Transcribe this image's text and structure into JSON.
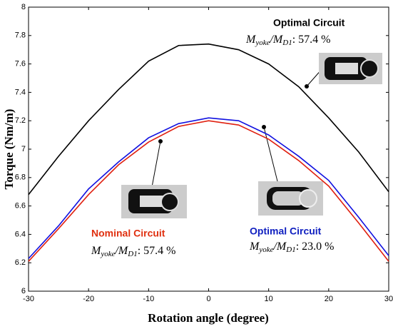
{
  "chart_data": {
    "type": "line",
    "x_label": "Rotation angle (degree)",
    "y_label": "Torque (Nm/m)",
    "x": [
      -30,
      -25,
      -20,
      -15,
      -10,
      -5,
      0,
      5,
      10,
      15,
      20,
      25,
      30
    ],
    "series": [
      {
        "color": "#000000",
        "values": [
          6.68,
          6.95,
          7.2,
          7.42,
          7.62,
          7.73,
          7.74,
          7.7,
          7.6,
          7.44,
          7.22,
          6.98,
          6.7
        ]
      },
      {
        "color": "#1010e0",
        "values": [
          6.23,
          6.46,
          6.72,
          6.91,
          7.08,
          7.18,
          7.22,
          7.2,
          7.1,
          6.95,
          6.78,
          6.52,
          6.25
        ]
      },
      {
        "color": "#e02010",
        "values": [
          6.21,
          6.44,
          6.68,
          6.89,
          7.05,
          7.16,
          7.2,
          7.17,
          7.07,
          6.92,
          6.74,
          6.48,
          6.21
        ]
      }
    ],
    "xlim": [
      -30,
      30
    ],
    "xticks": [
      -30,
      -20,
      -10,
      0,
      10,
      20,
      30
    ],
    "ylim": [
      6,
      8
    ],
    "yticks": [
      6,
      6.2,
      6.4,
      6.6,
      6.8,
      7,
      7.2,
      7.4,
      7.6,
      7.8,
      8
    ],
    "annotations": [
      {
        "title": "Optimal Circuit",
        "color": "#000000",
        "m1": "M",
        "s1": "yoke",
        "m2": "/M",
        "s2": "D1",
        "value": ":  57.4 %"
      },
      {
        "title": "Nominal Circuit",
        "color": "#e03010",
        "m1": "M",
        "s1": "yoke",
        "m2": "/M",
        "s2": "D1",
        "value": ":  57.4 %"
      },
      {
        "title": "Optimal Circuit",
        "color": "#1020c0",
        "m1": "M",
        "s1": "yoke",
        "m2": "/M",
        "s2": "D1",
        "value": ":  23.0 %"
      }
    ]
  }
}
